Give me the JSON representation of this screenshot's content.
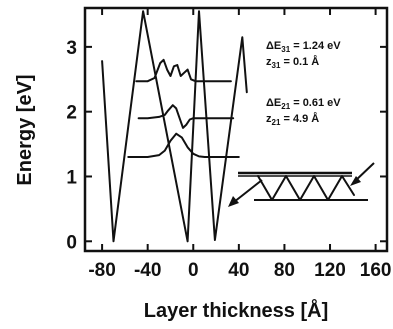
{
  "chart_data": {
    "type": "line",
    "xlabel": "Layer thickness [Å]",
    "ylabel": "Energy [eV]",
    "xlim": [
      -95,
      170
    ],
    "ylim": [
      -0.15,
      3.6
    ],
    "x_ticks": [
      -80,
      -40,
      0,
      40,
      80,
      120,
      160
    ],
    "x_tick_labels": [
      "-80",
      "-40",
      "0",
      "40",
      "80",
      "120",
      "160"
    ],
    "y_ticks": [
      0,
      1,
      2,
      3
    ],
    "y_tick_labels": [
      "0",
      "1",
      "2",
      "3"
    ],
    "grid": false,
    "series": [
      {
        "role": "conduction band profile",
        "x": [
          -80,
          -70,
          -70,
          -44,
          -44,
          -5,
          -5,
          5,
          5,
          19,
          19,
          43,
          43,
          47
        ],
        "y": [
          2.78,
          0,
          0,
          3.55,
          3.55,
          0,
          0,
          3.55,
          3.55,
          0.02,
          0.02,
          3.15,
          3.15,
          2.3
        ]
      },
      {
        "role": "level 1 wavefunction",
        "x": [
          -57,
          -40,
          -30,
          -25,
          -20,
          -15,
          -10,
          -5,
          0,
          5,
          10,
          19,
          30,
          40
        ],
        "y": [
          1.3,
          1.3,
          1.33,
          1.4,
          1.55,
          1.66,
          1.6,
          1.45,
          1.35,
          1.31,
          1.3,
          1.3,
          1.3,
          1.3
        ]
      },
      {
        "role": "level 2 wavefunction",
        "x": [
          -48,
          -40,
          -30,
          -25,
          -22,
          -18,
          -15,
          -12,
          -9,
          -6,
          -3,
          0,
          5,
          10,
          19,
          35
        ],
        "y": [
          1.9,
          1.9,
          1.92,
          1.95,
          2.02,
          2.1,
          2.05,
          1.9,
          1.75,
          1.8,
          1.88,
          1.9,
          1.9,
          1.9,
          1.9,
          1.9
        ]
      },
      {
        "role": "level 3 wavefunction",
        "x": [
          -50,
          -40,
          -34,
          -29,
          -26,
          -23,
          -20,
          -17,
          -14,
          -11,
          -8,
          -5,
          -2,
          2,
          8,
          19,
          33
        ],
        "y": [
          2.47,
          2.47,
          2.52,
          2.75,
          2.8,
          2.65,
          2.55,
          2.7,
          2.72,
          2.55,
          2.6,
          2.65,
          2.5,
          2.47,
          2.47,
          2.47,
          2.47
        ]
      }
    ],
    "annotations": [
      {
        "label": "ΔE",
        "subscript": "31",
        "value": " = 1.24 eV"
      },
      {
        "label": "z",
        "subscript": "31",
        "value": " = 0.1 Å"
      },
      {
        "label": "ΔE",
        "subscript": "21",
        "value": " = 0.61 eV"
      },
      {
        "label": "z",
        "subscript": "21",
        "value": " = 4.9 Å"
      }
    ]
  }
}
